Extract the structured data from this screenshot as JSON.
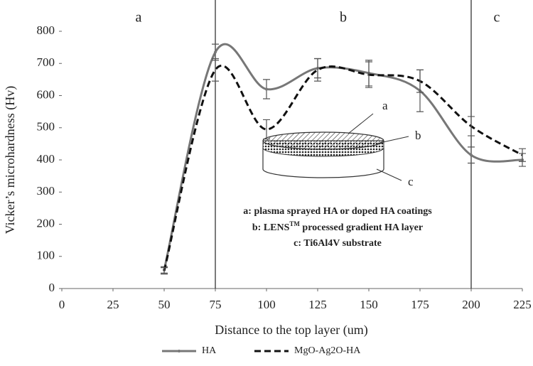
{
  "chart_data": {
    "type": "line",
    "x_label": "Distance to the top layer (um)",
    "y_label": "Vicker’s microhardness  (Hv)",
    "x": [
      50,
      75,
      100,
      125,
      150,
      175,
      200,
      225
    ],
    "series": [
      {
        "name": "HA",
        "color": "#777777",
        "style": "solid",
        "values": [
          58,
          735,
          620,
          685,
          670,
          615,
          415,
          400
        ],
        "errors": [
          10,
          25,
          30,
          30,
          40,
          65,
          25,
          20
        ]
      },
      {
        "name": "MgO-Ag2O-HA",
        "color": "#111111",
        "style": "dashed",
        "values": [
          55,
          680,
          495,
          680,
          665,
          645,
          505,
          415
        ],
        "errors": [
          10,
          35,
          30,
          35,
          40,
          35,
          30,
          20
        ]
      }
    ],
    "xlim": [
      0,
      225
    ],
    "xticks": [
      0,
      25,
      50,
      75,
      100,
      125,
      150,
      175,
      200,
      225
    ],
    "ylim": [
      0,
      800
    ],
    "yticks": [
      0,
      100,
      200,
      300,
      400,
      500,
      600,
      700,
      800
    ],
    "vlines": [
      75,
      200
    ],
    "regions": [
      "a",
      "b",
      "c"
    ],
    "inset_labels": [
      "a",
      "b",
      "c"
    ],
    "notes": [
      "a: plasma sprayed HA or doped HA coatings",
      "b: LENS",
      "TM",
      " processed gradient HA layer",
      "c: Ti6Al4V substrate"
    ],
    "legend": "bottom"
  }
}
